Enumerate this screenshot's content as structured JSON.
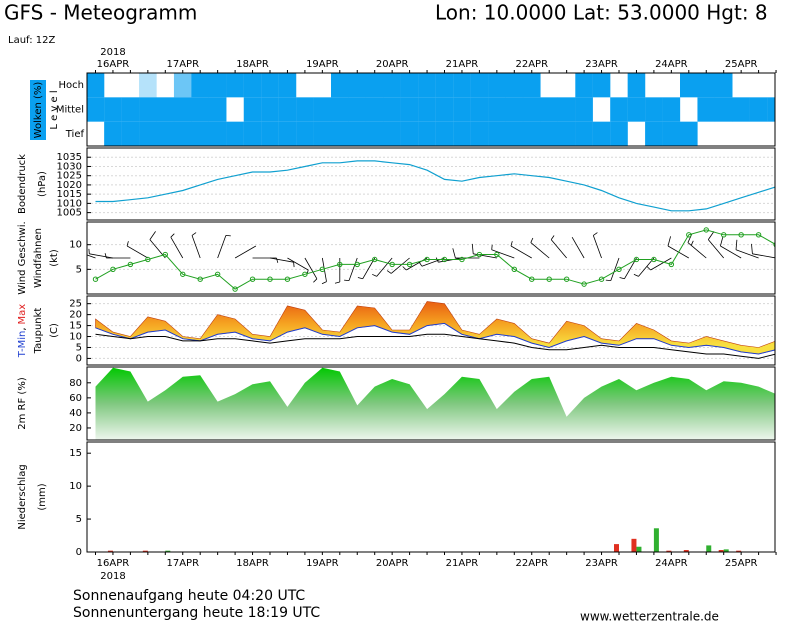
{
  "header": {
    "title": "GFS - Meteogramm",
    "location": "Lon: 10.0000 Lat: 53.0000 Hgt: 8",
    "run": "Lauf: 12Z"
  },
  "time_axis": {
    "year": "2018",
    "categories": [
      null,
      "16APR",
      null,
      null,
      null,
      "17APR",
      null,
      null,
      null,
      "18APR",
      null,
      null,
      null,
      "19APR",
      null,
      null,
      null,
      "20APR",
      null,
      null,
      null,
      "21APR",
      null,
      null,
      null,
      "22APR",
      null,
      null,
      null,
      "23APR",
      null,
      null,
      null,
      "24APR",
      null,
      null,
      null,
      "25APR",
      null,
      null
    ]
  },
  "chart_data": [
    {
      "type": "cloud-layers",
      "ylabel": "Wolken (%)",
      "axis_label": "L e v e l",
      "levels": [
        "Hoch",
        "Mittel",
        "Tief"
      ],
      "color": "#0aa0f0",
      "values": [
        [
          100,
          0,
          0,
          30,
          0,
          60,
          100,
          100,
          100,
          100,
          100,
          100,
          0,
          0,
          100,
          100,
          100,
          100,
          100,
          100,
          100,
          100,
          100,
          100,
          100,
          100,
          0,
          0,
          100,
          100,
          0,
          100,
          0,
          0,
          100,
          100,
          100,
          0,
          0,
          0
        ],
        [
          100,
          100,
          100,
          100,
          100,
          100,
          100,
          100,
          0,
          100,
          100,
          100,
          100,
          100,
          100,
          100,
          100,
          100,
          100,
          100,
          100,
          100,
          100,
          100,
          100,
          100,
          100,
          100,
          100,
          0,
          100,
          100,
          100,
          100,
          0,
          100,
          100,
          100,
          100,
          100
        ],
        [
          0,
          100,
          100,
          100,
          100,
          100,
          100,
          100,
          100,
          100,
          100,
          100,
          100,
          100,
          100,
          100,
          100,
          100,
          100,
          100,
          100,
          100,
          100,
          100,
          100,
          100,
          100,
          100,
          100,
          100,
          100,
          0,
          100,
          100,
          100,
          0,
          0,
          0,
          0,
          0
        ]
      ]
    },
    {
      "type": "line",
      "ylabel": "Bodendruck",
      "unit": "(hPa)",
      "ylim": [
        1001,
        1040
      ],
      "yticks": [
        1005,
        1010,
        1015,
        1020,
        1025,
        1030,
        1035
      ],
      "grid": true,
      "series": [
        {
          "color": "#10a0d0",
          "values": [
            1011,
            1011,
            1012,
            1013,
            1015,
            1017,
            1020,
            1023,
            1025,
            1027,
            1027,
            1028,
            1030,
            1032,
            1032,
            1033,
            1033,
            1032,
            1031,
            1028,
            1023,
            1022,
            1024,
            1025,
            1026,
            1025,
            1024,
            1022,
            1020,
            1017,
            1013,
            1010,
            1008,
            1006,
            1006,
            1007,
            1010,
            1013,
            1016,
            1019
          ]
        }
      ]
    },
    {
      "type": "wind",
      "unit": "(kt)",
      "ylim": [
        0,
        14.6
      ],
      "yticks": [
        5,
        10
      ],
      "grid": true,
      "series": [
        {
          "name": "Wind Geschwi.",
          "color": "#20a020",
          "values": [
            3,
            5,
            6,
            7,
            8,
            4,
            3,
            4,
            1,
            3,
            3,
            3,
            4,
            5,
            6,
            6,
            7,
            6,
            6,
            7,
            7,
            7,
            8,
            8,
            5,
            3,
            3,
            3,
            2,
            3,
            5,
            7,
            7,
            6,
            12,
            13,
            12,
            12,
            12,
            10
          ]
        }
      ],
      "barbs": {
        "name": "Windfahnen",
        "color": "#000000",
        "directions": [
          290,
          280,
          270,
          300,
          320,
          330,
          340,
          20,
          60,
          90,
          100,
          120,
          150,
          170,
          180,
          200,
          210,
          220,
          230,
          240,
          250,
          260,
          270,
          280,
          290,
          300,
          310,
          320,
          330,
          340,
          200,
          210,
          220,
          240,
          300,
          310,
          320,
          300,
          290,
          280
        ]
      }
    },
    {
      "type": "temperature",
      "unit": "(C)",
      "ylabel_separator": ",",
      "ylim": [
        -3,
        28.5
      ],
      "yticks": [
        0,
        5,
        10,
        15,
        20,
        25
      ],
      "grid": true,
      "series": [
        {
          "name": "T-Min",
          "color": "#2040d0",
          "values": [
            14,
            11,
            9,
            12,
            13,
            9,
            8,
            11,
            12,
            9,
            8,
            12,
            14,
            11,
            10,
            14,
            15,
            12,
            11,
            15,
            16,
            11,
            9,
            11,
            10,
            7,
            5,
            8,
            10,
            7,
            6,
            9,
            9,
            6,
            5,
            6,
            5,
            3,
            2,
            4
          ]
        },
        {
          "name": "Max",
          "color": "#e02020",
          "values": [
            18,
            12,
            10,
            19,
            17,
            10,
            9,
            20,
            18,
            11,
            10,
            24,
            22,
            13,
            12,
            24,
            23,
            13,
            13,
            26,
            25,
            13,
            11,
            18,
            16,
            9,
            7,
            17,
            15,
            9,
            8,
            16,
            13,
            8,
            7,
            10,
            8,
            6,
            5,
            8
          ]
        },
        {
          "name": "Taupunkt",
          "color": "#000000",
          "values": [
            11,
            10,
            9,
            10,
            10,
            8,
            8,
            9,
            9,
            8,
            7,
            8,
            9,
            9,
            9,
            10,
            10,
            10,
            10,
            11,
            11,
            10,
            9,
            8,
            7,
            5,
            4,
            4,
            5,
            6,
            5,
            5,
            5,
            4,
            3,
            2,
            2,
            1,
            0,
            2
          ]
        }
      ]
    },
    {
      "type": "area",
      "ylabel": "2m RF (%)",
      "color": "#10c010",
      "ylim": [
        4,
        101
      ],
      "yticks": [
        20,
        40,
        60,
        80
      ],
      "values": [
        75,
        100,
        95,
        55,
        70,
        88,
        90,
        55,
        65,
        78,
        82,
        48,
        80,
        100,
        95,
        50,
        75,
        85,
        78,
        45,
        65,
        88,
        85,
        45,
        68,
        85,
        88,
        35,
        60,
        75,
        85,
        70,
        80,
        88,
        85,
        70,
        82,
        80,
        75,
        65
      ]
    },
    {
      "type": "bar",
      "ylabel": "Niederschlag",
      "unit": "(mm)",
      "ylim": [
        0,
        16.7
      ],
      "yticks": [
        0,
        5,
        10,
        15
      ],
      "series": [
        {
          "color": "#e03020",
          "values": [
            0,
            0.2,
            0,
            0.2,
            0,
            0,
            0,
            0,
            0,
            0,
            0,
            0,
            0,
            0,
            0,
            0,
            0,
            0,
            0,
            0,
            0,
            0,
            0,
            0,
            0,
            0,
            0,
            0,
            0,
            0,
            1.2,
            2.0,
            0,
            0.2,
            0.3,
            0,
            0.3,
            0.2,
            0,
            0
          ]
        },
        {
          "color": "#30b030",
          "values": [
            0,
            0,
            0,
            0,
            0.2,
            0,
            0,
            0,
            0,
            0,
            0,
            0,
            0,
            0,
            0,
            0,
            0,
            0,
            0,
            0,
            0,
            0,
            0,
            0,
            0,
            0,
            0,
            0,
            0,
            0,
            0,
            0.8,
            3.6,
            0,
            0,
            1.0,
            0.4,
            0,
            0,
            0
          ]
        }
      ]
    }
  ],
  "footer": {
    "sunrise": "Sonnenaufgang heute 04:20 UTC",
    "sunset": "Sonnenuntergang heute 18:19 UTC",
    "source": "www.wetterzentrale.de"
  }
}
